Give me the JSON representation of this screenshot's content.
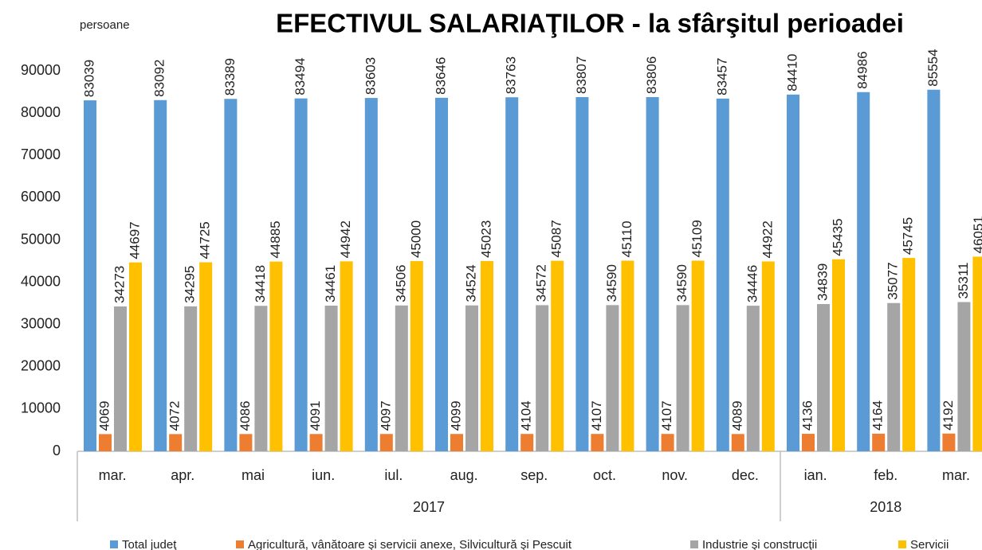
{
  "chart_data": {
    "type": "bar",
    "title": "EFECTIVUL SALARIAŢILOR - la sfârşitul perioadei",
    "ylabel": "persoane",
    "categories": [
      "mar.",
      "apr.",
      "mai",
      "iun.",
      "iul.",
      "aug.",
      "sep.",
      "oct.",
      "nov.",
      "dec.",
      "ian.",
      "feb.",
      "mar."
    ],
    "x_groups": [
      {
        "label": "2017",
        "span": 10
      },
      {
        "label": "2018",
        "span": 3
      }
    ],
    "series": [
      {
        "name": "Total judeţ",
        "color": "#5b9bd5",
        "values": [
          83039,
          83092,
          83389,
          83494,
          83603,
          83646,
          83763,
          83807,
          83806,
          83457,
          84410,
          84986,
          85554
        ]
      },
      {
        "name": "Agricultură, vânătoare şi servicii anexe, Silvicultură şi Pescuit",
        "color": "#ed7d31",
        "values": [
          4069,
          4072,
          4086,
          4091,
          4097,
          4099,
          4104,
          4107,
          4107,
          4089,
          4136,
          4164,
          4192
        ]
      },
      {
        "name": "Industrie şi construcţii",
        "color": "#a5a5a5",
        "values": [
          34273,
          34295,
          34418,
          34461,
          34506,
          34524,
          34572,
          34590,
          34590,
          34446,
          34839,
          35077,
          35311
        ]
      },
      {
        "name": "Servicii",
        "color": "#ffc000",
        "values": [
          44697,
          44725,
          44885,
          44942,
          45000,
          45023,
          45087,
          45110,
          45109,
          44922,
          45435,
          45745,
          46051
        ]
      }
    ],
    "ylim": [
      0,
      100000
    ],
    "yticks": [
      0,
      10000,
      20000,
      30000,
      40000,
      50000,
      60000,
      70000,
      80000,
      90000
    ],
    "grid": false,
    "legend": "bottom"
  }
}
